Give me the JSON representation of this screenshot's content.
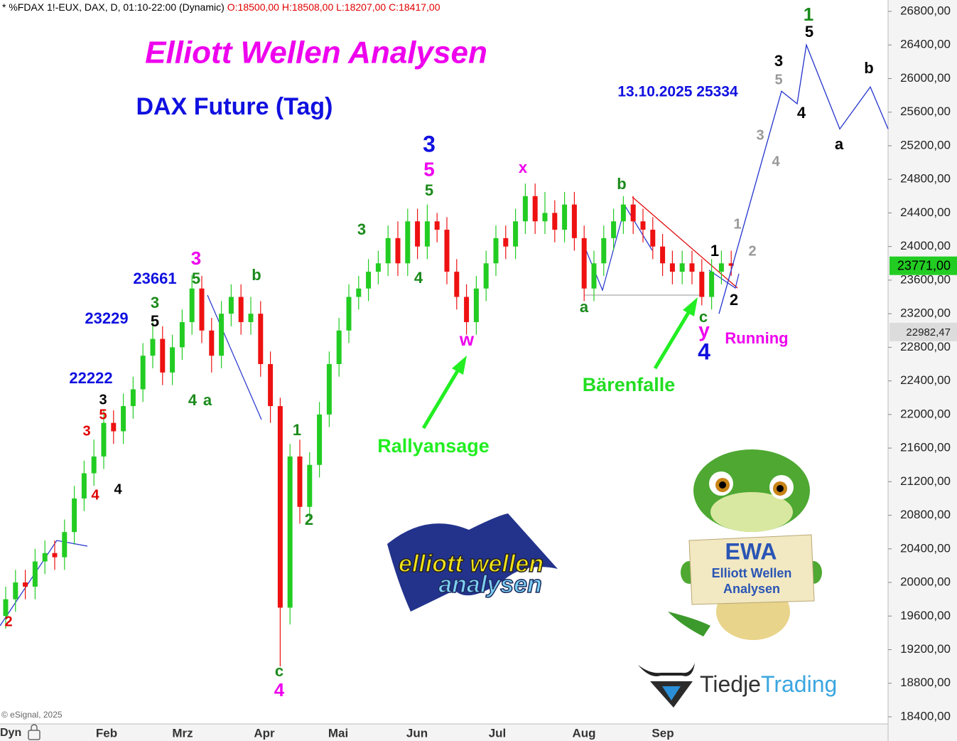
{
  "header": {
    "instrument": "* %FDAX 1!-EUX, DAX, D, 01:10-22:00 (Dynamic)",
    "ohlc": "O:18500,00 H:18508,00 L:18207,00 C:18417,00"
  },
  "chart_data": {
    "type": "candlestick",
    "title": "Elliott Wellen Analysen",
    "subtitle": "DAX Future (Tag)",
    "up_color": "#22cc22",
    "down_color": "#ee1111",
    "open": [
      19600,
      19800,
      20000,
      19950,
      20250,
      20350,
      20300,
      20600,
      21000,
      21300,
      21500,
      21900,
      21800,
      22100,
      22300,
      22700,
      22900,
      22500,
      22800,
      23100,
      23500,
      23000,
      22700,
      23200,
      23400,
      23100,
      23200,
      22600,
      22100,
      19700,
      21500,
      20900,
      21400,
      22000,
      22600,
      23000,
      23400,
      23500,
      23700,
      23800,
      24100,
      23800,
      24300,
      24000,
      24300,
      24200,
      23700,
      23400,
      23100,
      23500,
      23800,
      24100,
      24000,
      24300,
      24600,
      24300,
      24400,
      24200,
      24500,
      24100,
      23500,
      23800,
      24100,
      24300,
      24500,
      24300,
      24200,
      24000,
      23800,
      23700,
      23800,
      23700,
      23400,
      23700,
      23800
    ],
    "high": [
      19950,
      20150,
      20150,
      20400,
      20500,
      20500,
      20750,
      21150,
      21450,
      21700,
      22050,
      22050,
      22250,
      22450,
      22850,
      23100,
      23050,
      22950,
      23250,
      23661,
      23650,
      23150,
      23350,
      23550,
      23550,
      23400,
      23350,
      22750,
      22200,
      21650,
      21700,
      21550,
      22150,
      22750,
      23150,
      23550,
      23650,
      23850,
      23950,
      24250,
      24300,
      24450,
      24450,
      24500,
      24400,
      24350,
      23850,
      23550,
      23650,
      23950,
      24250,
      24250,
      24450,
      24750,
      24750,
      24650,
      24550,
      24650,
      24650,
      24250,
      23950,
      24250,
      24450,
      24600,
      24600,
      24450,
      24350,
      24150,
      23950,
      23950,
      23950,
      23850,
      23850,
      23950,
      23950
    ],
    "low": [
      19450,
      19650,
      19800,
      19800,
      20100,
      20150,
      20150,
      20450,
      20850,
      21150,
      21350,
      21650,
      21650,
      21950,
      22150,
      22550,
      22350,
      22350,
      22650,
      22950,
      22850,
      22500,
      22550,
      23050,
      22950,
      22950,
      22450,
      21900,
      19000,
      19500,
      20700,
      20750,
      21250,
      21850,
      22450,
      22850,
      23250,
      23350,
      23550,
      23650,
      23650,
      23650,
      23850,
      23850,
      24050,
      23550,
      23250,
      22950,
      22950,
      23350,
      23650,
      23850,
      23850,
      24150,
      24150,
      24150,
      24050,
      24050,
      23950,
      23350,
      23350,
      23650,
      23950,
      24150,
      24150,
      24050,
      23850,
      23650,
      23550,
      23550,
      23550,
      23300,
      23250,
      23550,
      23650
    ],
    "close": [
      19800,
      20000,
      19950,
      20250,
      20350,
      20300,
      20600,
      21000,
      21300,
      21500,
      21900,
      21800,
      22100,
      22300,
      22700,
      22900,
      22500,
      22800,
      23100,
      23500,
      23000,
      22700,
      23200,
      23400,
      23100,
      23200,
      22600,
      22100,
      19700,
      21500,
      20900,
      21400,
      22000,
      22600,
      23000,
      23400,
      23500,
      23700,
      23800,
      24100,
      23800,
      24300,
      24000,
      24300,
      24200,
      23700,
      23400,
      23100,
      23500,
      23800,
      24100,
      24000,
      24300,
      24600,
      24300,
      24400,
      24200,
      24500,
      24100,
      23500,
      23800,
      24100,
      24300,
      24500,
      24300,
      24200,
      24000,
      23800,
      23700,
      23800,
      23700,
      23400,
      23700,
      23800,
      23771
    ],
    "forecast": {
      "color": "#2233cc",
      "values": [
        23200,
        25850,
        25700,
        26400,
        25400,
        25900,
        25400
      ]
    },
    "ylim": [
      18400,
      26800
    ],
    "yticks": [
      {
        "value": 18400,
        "label": "18400,00"
      },
      {
        "value": 18800,
        "label": "18800,00"
      },
      {
        "value": 19200,
        "label": "19200,00"
      },
      {
        "value": 19600,
        "label": "19600,00"
      },
      {
        "value": 20000,
        "label": "20000,00"
      },
      {
        "value": 20400,
        "label": "20400,00"
      },
      {
        "value": 20800,
        "label": "20800,00"
      },
      {
        "value": 21200,
        "label": "21200,00"
      },
      {
        "value": 21600,
        "label": "21600,00"
      },
      {
        "value": 22000,
        "label": "22000,00"
      },
      {
        "value": 22400,
        "label": "22400,00"
      },
      {
        "value": 22800,
        "label": "22800,00"
      },
      {
        "value": 23200,
        "label": "23200,00"
      },
      {
        "value": 23600,
        "label": "23600,00"
      },
      {
        "value": 24000,
        "label": "24000,00"
      },
      {
        "value": 24400,
        "label": "24400,00"
      },
      {
        "value": 24800,
        "label": "24800,00"
      },
      {
        "value": 25200,
        "label": "25200,00"
      },
      {
        "value": 25600,
        "label": "25600,00"
      },
      {
        "value": 26000,
        "label": "26000,00"
      },
      {
        "value": 26400,
        "label": "26400,00"
      },
      {
        "value": 26800,
        "label": "26800,00"
      }
    ],
    "last_price": {
      "value": 23771,
      "label": "23771,00"
    },
    "marker_price": {
      "value": 22982.47,
      "label": "22982,47"
    },
    "x_mode": "Dyn",
    "x_labels": [
      "Feb",
      "Mrz",
      "Apr",
      "Mai",
      "Jun",
      "Jul",
      "Aug",
      "Sep"
    ],
    "annotations": [
      {
        "text": "23661",
        "color": "#1010e0"
      },
      {
        "text": "23229",
        "color": "#1010e0"
      },
      {
        "text": "22222",
        "color": "#1010e0"
      },
      {
        "text": "13.10.2025 25334",
        "color": "#1010e0"
      },
      {
        "text": "3",
        "color": "#ee00ee"
      },
      {
        "text": "5",
        "color": "#1a8a1a"
      },
      {
        "text": "3",
        "color": "#1a8a1a"
      },
      {
        "text": "5",
        "color": "#000000"
      },
      {
        "text": "3",
        "color": "#000000"
      },
      {
        "text": "5",
        "color": "#e00000"
      },
      {
        "text": "3",
        "color": "#e00000"
      },
      {
        "text": "4",
        "color": "#e00000"
      },
      {
        "text": "4",
        "color": "#000000"
      },
      {
        "text": "2",
        "color": "#e00000"
      },
      {
        "text": "4",
        "color": "#1a8a1a"
      },
      {
        "text": "a",
        "color": "#1a8a1a"
      },
      {
        "text": "b",
        "color": "#1a8a1a"
      },
      {
        "text": "1",
        "color": "#1a8a1a"
      },
      {
        "text": "2",
        "color": "#1a8a1a"
      },
      {
        "text": "c",
        "color": "#1a8a1a"
      },
      {
        "text": "4",
        "color": "#ee00ee"
      },
      {
        "text": "3",
        "color": "#1a8a1a"
      },
      {
        "text": "4",
        "color": "#1a8a1a"
      },
      {
        "text": "3",
        "color": "#1010e0"
      },
      {
        "text": "5",
        "color": "#ee00ee"
      },
      {
        "text": "5",
        "color": "#1a8a1a"
      },
      {
        "text": "x",
        "color": "#ee00ee"
      },
      {
        "text": "w",
        "color": "#ee00ee"
      },
      {
        "text": "b",
        "color": "#1a8a1a"
      },
      {
        "text": "a",
        "color": "#1a8a1a"
      },
      {
        "text": "c",
        "color": "#1a8a1a"
      },
      {
        "text": "y",
        "color": "#ee00ee"
      },
      {
        "text": "4",
        "color": "#1010e0"
      },
      {
        "text": "Running",
        "color": "#ee00ee"
      },
      {
        "text": "1",
        "color": "#000000"
      },
      {
        "text": "2",
        "color": "#000000"
      },
      {
        "text": "1",
        "color": "#999999"
      },
      {
        "text": "2",
        "color": "#999999"
      },
      {
        "text": "3",
        "color": "#999999"
      },
      {
        "text": "4",
        "color": "#999999"
      },
      {
        "text": "3",
        "color": "#000000"
      },
      {
        "text": "5",
        "color": "#999999"
      },
      {
        "text": "4",
        "color": "#000000"
      },
      {
        "text": "1",
        "color": "#1a8a1a"
      },
      {
        "text": "5",
        "color": "#000000"
      },
      {
        "text": "a",
        "color": "#000000"
      },
      {
        "text": "b",
        "color": "#000000"
      },
      {
        "text": "Rallyansage",
        "color": "#22ee22"
      },
      {
        "text": "Bärenfalle",
        "color": "#22dd22"
      }
    ]
  },
  "footer": {
    "copyright": "© eSignal, 2025"
  },
  "logos": {
    "ewa_logo_line1": "elliott wellen",
    "ewa_logo_line2": "analysen",
    "mascot_title": "EWA",
    "mascot_line1": "Elliott Wellen",
    "mascot_line2": "Analysen",
    "brand_part1": "Tiedje",
    "brand_part2": "Trading"
  }
}
